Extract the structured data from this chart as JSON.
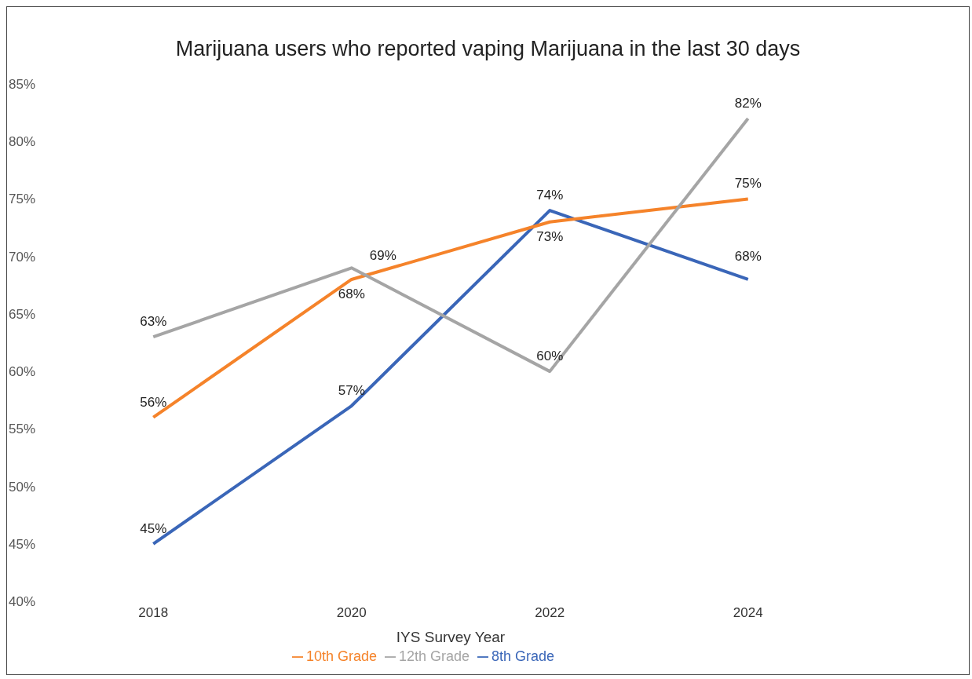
{
  "chart_data": {
    "type": "line",
    "title": "Marijuana users who reported vaping Marijuana in the last 30 days",
    "xlabel": "IYS Survey Year",
    "categories": [
      "2018",
      "2020",
      "2022",
      "2024"
    ],
    "series": [
      {
        "name": "8th Grade",
        "color": "#3a66b8",
        "values": [
          45,
          57,
          74,
          68
        ],
        "value_labels": [
          "45%",
          "57%",
          "74%",
          "68%"
        ]
      },
      {
        "name": "10th Grade",
        "color": "#f5832a",
        "values": [
          56,
          68,
          73,
          75
        ],
        "value_labels": [
          "56%",
          "68%",
          "73%",
          "75%"
        ]
      },
      {
        "name": "12th Grade",
        "color": "#a5a5a5",
        "values": [
          63,
          69,
          60,
          82
        ],
        "value_labels": [
          "63%",
          "69%",
          "60%",
          "82%"
        ]
      }
    ],
    "ylim": [
      40,
      85
    ],
    "yticks": [
      {
        "value": 40,
        "label": "40%"
      },
      {
        "value": 45,
        "label": "45%"
      },
      {
        "value": 50,
        "label": "50%"
      },
      {
        "value": 55,
        "label": "55%"
      },
      {
        "value": 60,
        "label": "60%"
      },
      {
        "value": 65,
        "label": "65%"
      },
      {
        "value": 70,
        "label": "70%"
      },
      {
        "value": 75,
        "label": "75%"
      },
      {
        "value": 80,
        "label": "80%"
      },
      {
        "value": 85,
        "label": "85%"
      }
    ],
    "grid": false,
    "legend": "bottom",
    "marker": "none",
    "line_style": "solid"
  }
}
